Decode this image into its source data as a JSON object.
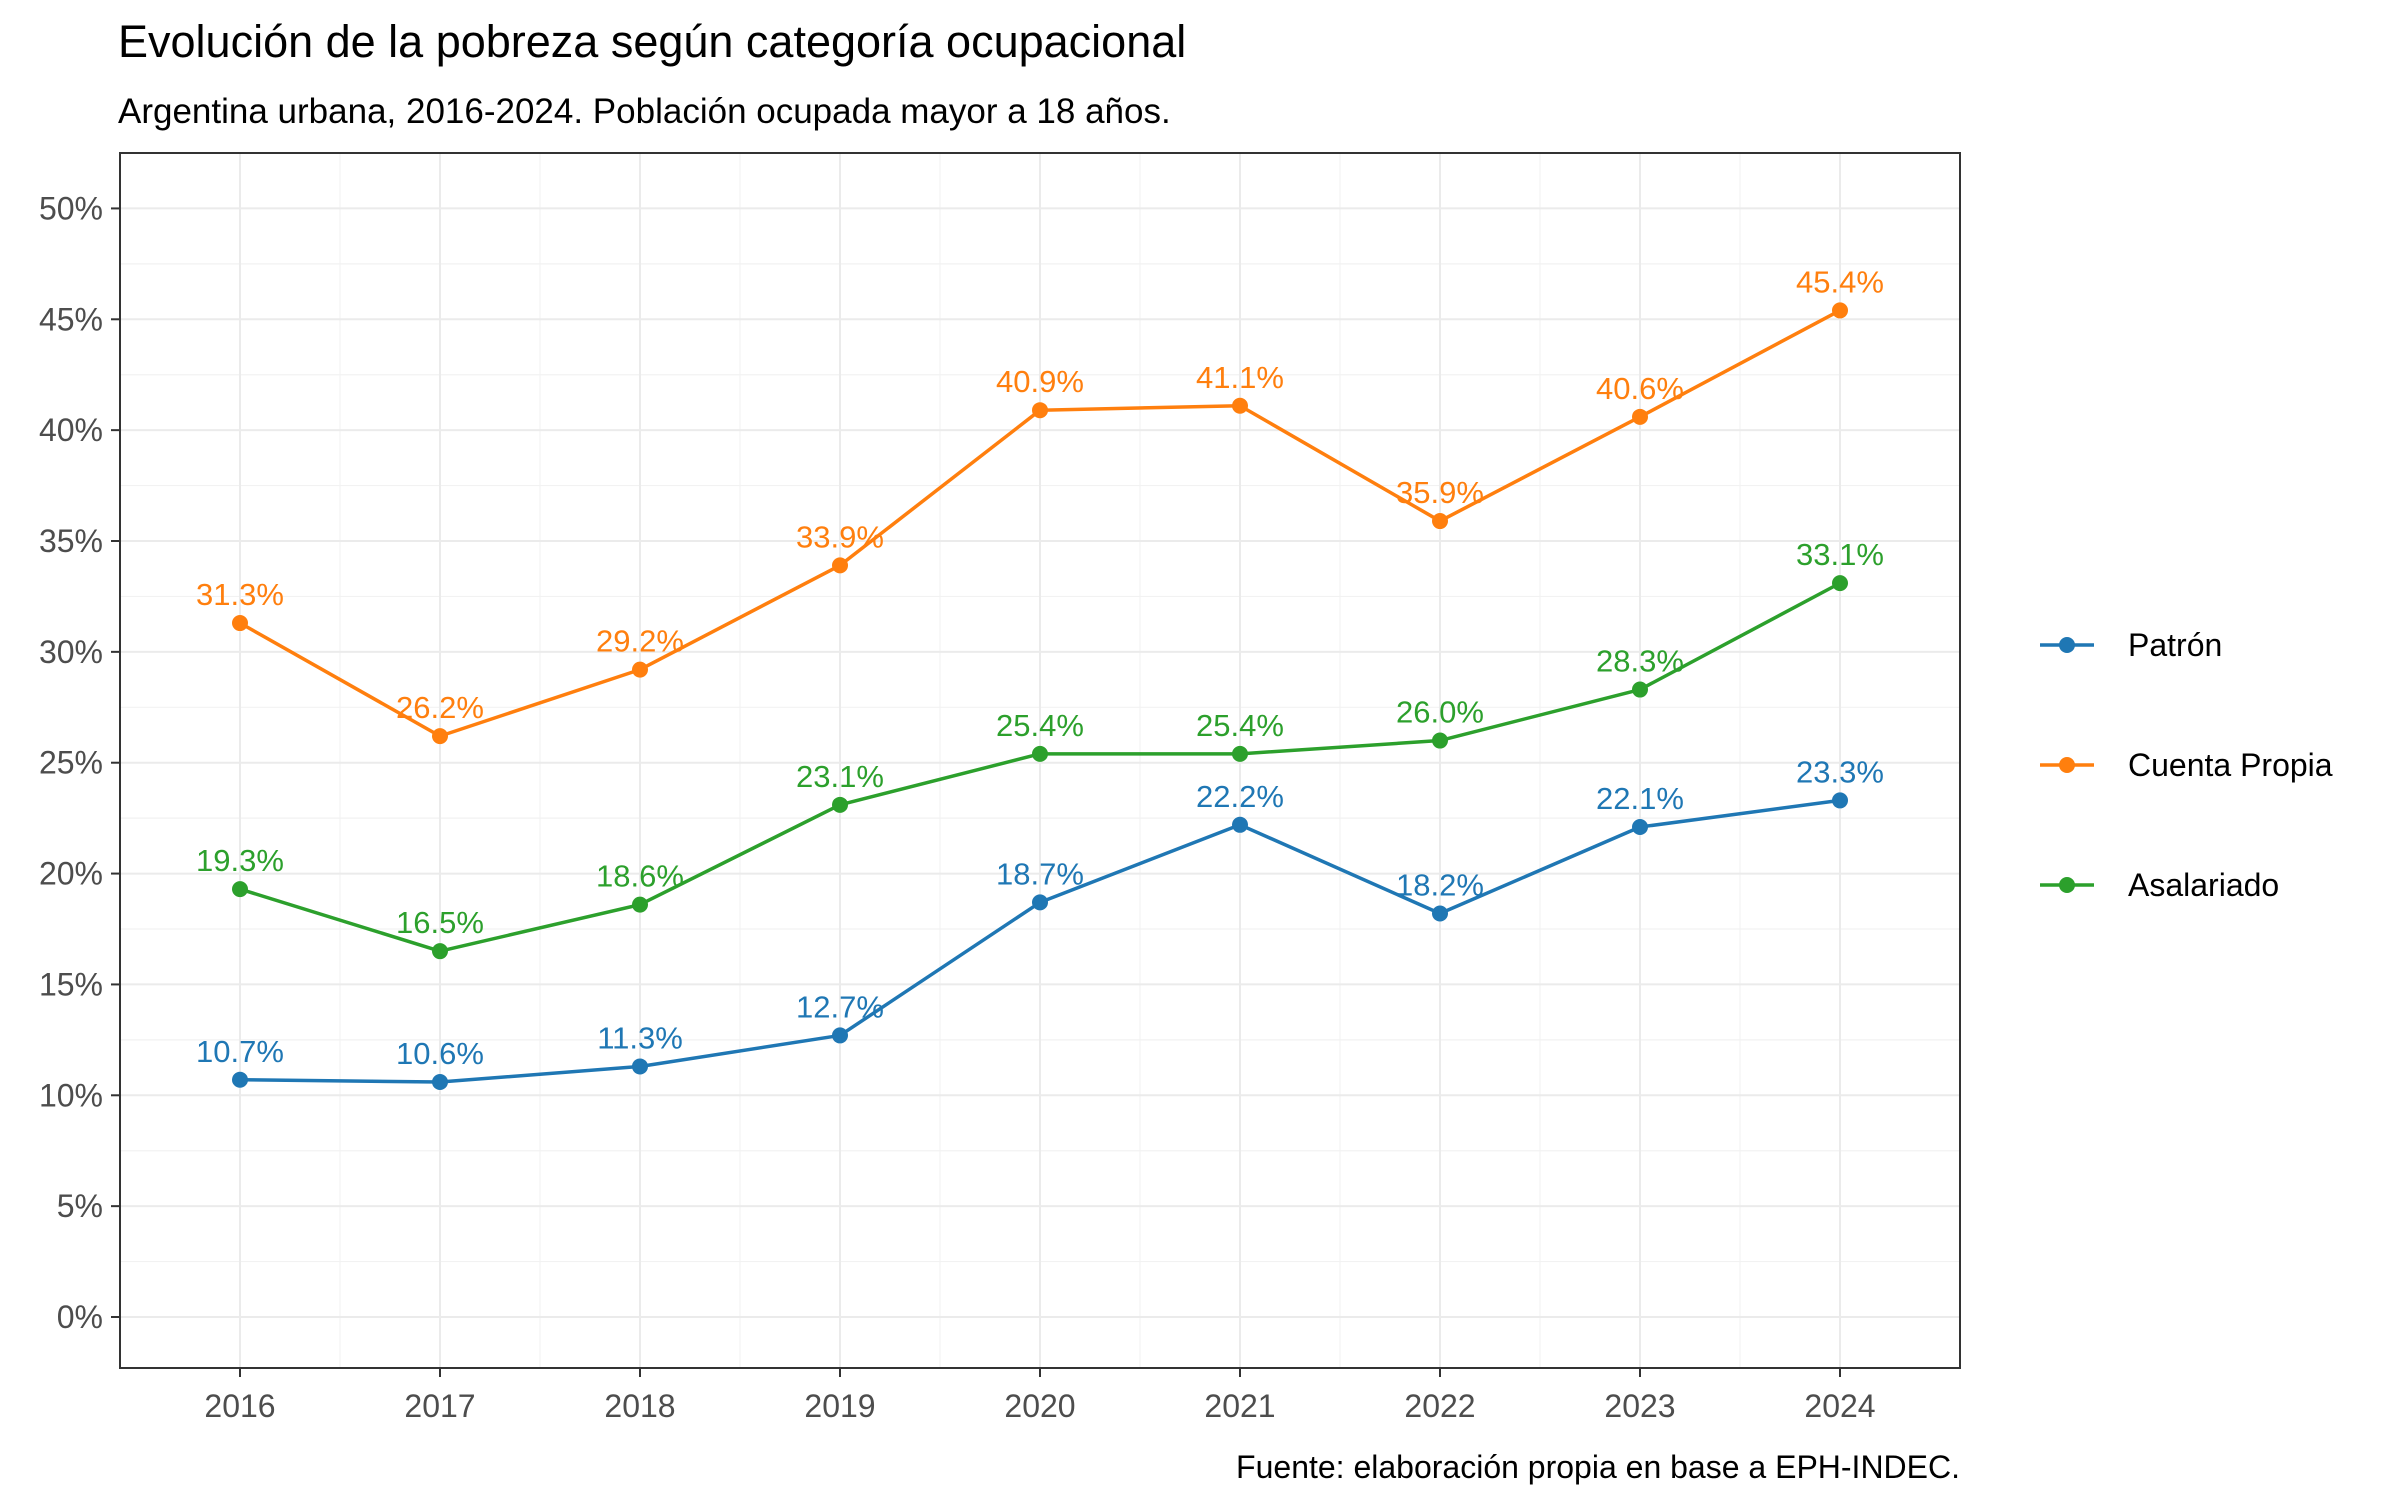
{
  "title": "Evolución de la pobreza según categoría ocupacional",
  "subtitle": "Argentina urbana, 2016-2024. Población ocupada mayor a 18 años.",
  "caption": "Fuente: elaboración propia en base a EPH-INDEC.",
  "chart_data": {
    "type": "line",
    "x": [
      2016,
      2017,
      2018,
      2019,
      2020,
      2021,
      2022,
      2023,
      2024
    ],
    "x_tick_labels": [
      "2016",
      "2017",
      "2018",
      "2019",
      "2020",
      "2021",
      "2022",
      "2023",
      "2024"
    ],
    "y_tick_values": [
      0,
      5,
      10,
      15,
      20,
      25,
      30,
      35,
      40,
      45,
      50
    ],
    "y_tick_labels": [
      "0%",
      "5%",
      "10%",
      "15%",
      "20%",
      "25%",
      "30%",
      "35%",
      "40%",
      "45%",
      "50%"
    ],
    "ylim": [
      -2.3,
      52.5
    ],
    "grid": true,
    "legend_position": "right",
    "series": [
      {
        "name": "Patrón",
        "color": "#1f77b4",
        "values": [
          10.7,
          10.6,
          11.3,
          12.7,
          18.7,
          22.2,
          18.2,
          22.1,
          23.3
        ],
        "labels": [
          "10.7%",
          "10.6%",
          "11.3%",
          "12.7%",
          "18.7%",
          "22.2%",
          "18.2%",
          "22.1%",
          "23.3%"
        ]
      },
      {
        "name": "Cuenta Propia",
        "color": "#ff7f0e",
        "values": [
          31.3,
          26.2,
          29.2,
          33.9,
          40.9,
          41.1,
          35.9,
          40.6,
          45.4
        ],
        "labels": [
          "31.3%",
          "26.2%",
          "29.2%",
          "33.9%",
          "40.9%",
          "41.1%",
          "35.9%",
          "40.6%",
          "45.4%"
        ]
      },
      {
        "name": "Asalariado",
        "color": "#2ca02c",
        "values": [
          19.3,
          16.5,
          18.6,
          23.1,
          25.4,
          25.4,
          26.0,
          28.3,
          33.1
        ],
        "labels": [
          "19.3%",
          "16.5%",
          "18.6%",
          "23.1%",
          "25.4%",
          "25.4%",
          "26.0%",
          "28.3%",
          "33.1%"
        ]
      }
    ]
  }
}
